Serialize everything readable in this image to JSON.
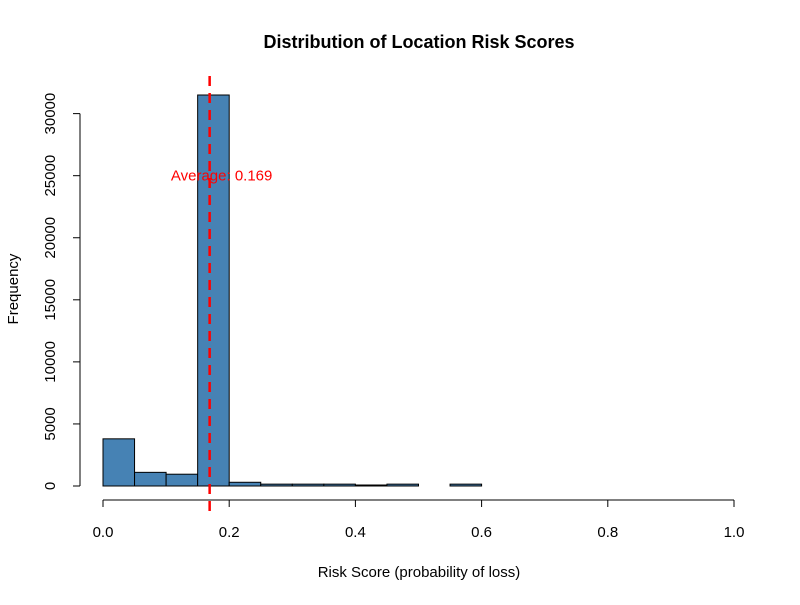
{
  "chart_data": {
    "type": "bar",
    "title": "Distribution of Location Risk Scores",
    "xlabel": "Risk Score (probability of loss)",
    "ylabel": "Frequency",
    "xlim": [
      0,
      1
    ],
    "ylim": [
      0,
      31500
    ],
    "x_ticks": [
      0,
      0.2,
      0.4,
      0.6,
      0.8,
      1.0
    ],
    "x_tick_labels": [
      "0.0",
      "0.2",
      "0.4",
      "0.6",
      "0.8",
      "1.0"
    ],
    "y_ticks": [
      0,
      5000,
      10000,
      15000,
      20000,
      25000,
      30000
    ],
    "y_tick_labels": [
      "0",
      "5000",
      "10000",
      "15000",
      "20000",
      "25000",
      "30000"
    ],
    "bins": [
      {
        "start": 0.0,
        "end": 0.05,
        "count": 3800
      },
      {
        "start": 0.05,
        "end": 0.1,
        "count": 1100
      },
      {
        "start": 0.1,
        "end": 0.15,
        "count": 950
      },
      {
        "start": 0.15,
        "end": 0.2,
        "count": 31500
      },
      {
        "start": 0.2,
        "end": 0.25,
        "count": 300
      },
      {
        "start": 0.25,
        "end": 0.3,
        "count": 150
      },
      {
        "start": 0.3,
        "end": 0.35,
        "count": 150
      },
      {
        "start": 0.35,
        "end": 0.4,
        "count": 150
      },
      {
        "start": 0.4,
        "end": 0.45,
        "count": 80
      },
      {
        "start": 0.45,
        "end": 0.5,
        "count": 150
      },
      {
        "start": 0.5,
        "end": 0.55,
        "count": 0
      },
      {
        "start": 0.55,
        "end": 0.6,
        "count": 150
      },
      {
        "start": 0.6,
        "end": 0.65,
        "count": 0
      },
      {
        "start": 0.65,
        "end": 0.7,
        "count": 0
      },
      {
        "start": 0.7,
        "end": 0.75,
        "count": 0
      },
      {
        "start": 0.75,
        "end": 0.8,
        "count": 0
      },
      {
        "start": 0.8,
        "end": 0.85,
        "count": 0
      },
      {
        "start": 0.85,
        "end": 0.9,
        "count": 0
      },
      {
        "start": 0.9,
        "end": 0.95,
        "count": 0
      },
      {
        "start": 0.95,
        "end": 1.0,
        "count": 0
      }
    ],
    "mean_line": {
      "value": 0.169,
      "label": "Average: 0.169",
      "label_y": 25000,
      "color": "#ff0000"
    },
    "bar_color": "#4682b4",
    "grid": false,
    "legend": "none"
  }
}
